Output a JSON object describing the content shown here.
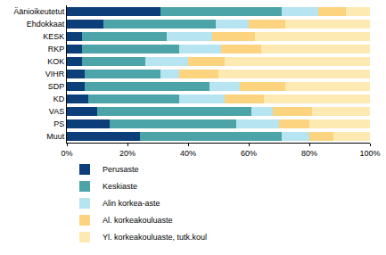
{
  "chart_data": {
    "type": "bar",
    "orientation": "horizontal",
    "stacked": true,
    "grid": false,
    "legend": "bottom",
    "categories": [
      "Äänioikeutetut",
      "Ehdokkaat",
      "KESK",
      "RKP",
      "KOK",
      "VIHR",
      "SDP",
      "KD",
      "VAS",
      "PS",
      "Muut"
    ],
    "series": [
      {
        "name": "Perusaste",
        "color": "#0c3f7a",
        "values": [
          31,
          12,
          5,
          5,
          5,
          6,
          6,
          7,
          10,
          14,
          24
        ]
      },
      {
        "name": "Keskiaste",
        "color": "#4ca4a8",
        "values": [
          40,
          37,
          28,
          32,
          21,
          25,
          41,
          30,
          51,
          42,
          47
        ]
      },
      {
        "name": "Alin korkea-aste",
        "color": "#b6e4f0",
        "values": [
          12,
          11,
          15,
          14,
          14,
          6,
          10,
          15,
          7,
          14,
          9
        ]
      },
      {
        "name": "Al. korkeakouluaste",
        "color": "#fcd37e",
        "values": [
          9,
          12,
          14,
          13,
          12,
          13,
          15,
          13,
          13,
          10,
          8
        ]
      },
      {
        "name": "Yl. korkeakouluaste, tutk.koul",
        "color": "#fde9b2",
        "values": [
          8,
          28,
          38,
          36,
          48,
          50,
          28,
          35,
          19,
          20,
          12
        ]
      }
    ],
    "xlim": [
      0,
      100
    ],
    "xticks": [
      {
        "value": 0,
        "label": "0%"
      },
      {
        "value": 20,
        "label": "20%"
      },
      {
        "value": 40,
        "label": "40%"
      },
      {
        "value": 60,
        "label": "60%"
      },
      {
        "value": 80,
        "label": "80%"
      },
      {
        "value": 100,
        "label": "100%"
      }
    ]
  }
}
